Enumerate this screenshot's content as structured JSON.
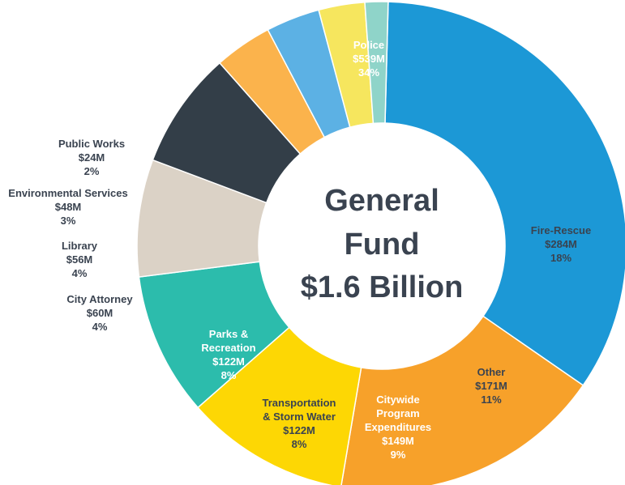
{
  "chart_data": {
    "type": "pie",
    "style": "donut",
    "center_title_lines": [
      "General",
      "Fund",
      "$1.6 Billion"
    ],
    "slices": [
      {
        "lines": [
          "Police",
          "$539M",
          "34%"
        ],
        "value": 539,
        "percent": 34,
        "color": "#1c98d6",
        "label_color": "#ffffff",
        "label_position": "inside"
      },
      {
        "lines": [
          "Fire-Rescue",
          "$284M",
          "18%"
        ],
        "value": 284,
        "percent": 18,
        "color": "#f7a12a",
        "label_color": "#3a4350",
        "label_position": "inside"
      },
      {
        "lines": [
          "Other",
          "$171M",
          "11%"
        ],
        "value": 171,
        "percent": 11,
        "color": "#fdd704",
        "label_color": "#3a4350",
        "label_position": "inside"
      },
      {
        "lines": [
          "Citywide",
          "Program",
          "Expenditures",
          "$149M",
          "9%"
        ],
        "value": 149,
        "percent": 9,
        "color": "#2cbcac",
        "label_color": "#ffffff",
        "label_position": "inside"
      },
      {
        "lines": [
          "Transportation",
          "& Storm Water",
          "$122M",
          "8%"
        ],
        "value": 122,
        "percent": 8,
        "color": "#dbd2c6",
        "label_color": "#3a4350",
        "label_position": "inside"
      },
      {
        "lines": [
          "Parks &",
          "Recreation",
          "$122M",
          "8%"
        ],
        "value": 122,
        "percent": 8,
        "color": "#333e48",
        "label_color": "#ffffff",
        "label_position": "inside"
      },
      {
        "lines": [
          "City Attorney",
          "$60M",
          "4%"
        ],
        "value": 60,
        "percent": 4,
        "color": "#fbb34c",
        "label_color": "#3a4350",
        "label_position": "outside"
      },
      {
        "lines": [
          "Library",
          "$56M",
          "4%"
        ],
        "value": 56,
        "percent": 4,
        "color": "#5cb1e4",
        "label_color": "#3a4350",
        "label_position": "outside"
      },
      {
        "lines": [
          "Environmental Services",
          "$48M",
          "3%"
        ],
        "value": 48,
        "percent": 3,
        "color": "#f6e65e",
        "label_color": "#3a4350",
        "label_position": "outside"
      },
      {
        "lines": [
          "Public Works",
          "$24M",
          "2%"
        ],
        "value": 24,
        "percent": 2,
        "color": "#8fd4c9",
        "label_color": "#3a4350",
        "label_position": "outside"
      }
    ]
  }
}
